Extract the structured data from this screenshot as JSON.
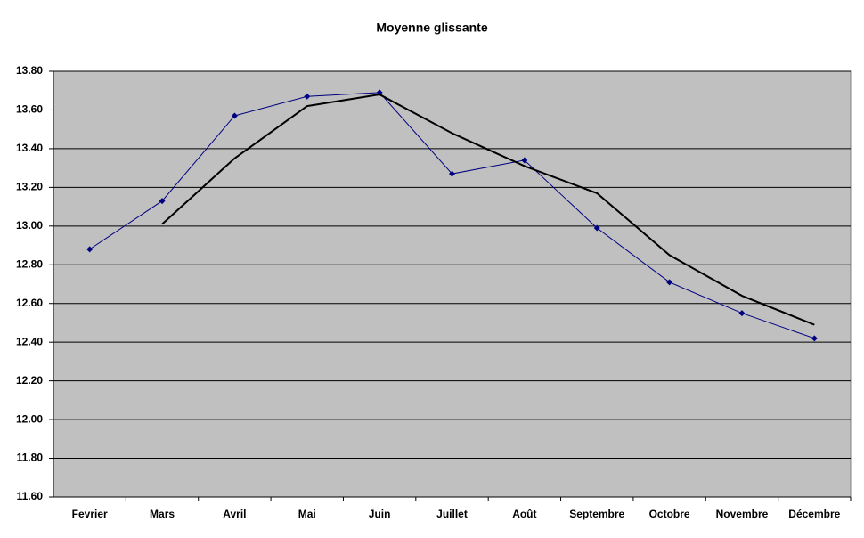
{
  "chart_data": {
    "type": "line",
    "title": "Moyenne glissante",
    "categories": [
      "Fevrier",
      "Mars",
      "Avril",
      "Mai",
      "Juin",
      "Juillet",
      "Août",
      "Septembre",
      "Octobre",
      "Novembre",
      "Décembre"
    ],
    "series": [
      {
        "color": "#000080",
        "marker": "diamond",
        "width": 1,
        "values": [
          12.88,
          13.13,
          13.57,
          13.67,
          13.69,
          13.27,
          13.34,
          12.99,
          12.71,
          12.55,
          12.42
        ]
      },
      {
        "color": "#000000",
        "marker": "none",
        "width": 2,
        "values": [
          null,
          13.01,
          13.35,
          13.62,
          13.68,
          13.48,
          13.31,
          13.17,
          12.85,
          12.64,
          12.49
        ]
      }
    ],
    "ylim": [
      11.6,
      13.8
    ],
    "yticks": [
      {
        "value": 11.6,
        "label": "11.60"
      },
      {
        "value": 11.8,
        "label": "11.80"
      },
      {
        "value": 12.0,
        "label": "12.00"
      },
      {
        "value": 12.2,
        "label": "12.20"
      },
      {
        "value": 12.4,
        "label": "12.40"
      },
      {
        "value": 12.6,
        "label": "12.60"
      },
      {
        "value": 12.8,
        "label": "12.80"
      },
      {
        "value": 13.0,
        "label": "13.00"
      },
      {
        "value": 13.2,
        "label": "13.20"
      },
      {
        "value": 13.4,
        "label": "13.40"
      },
      {
        "value": 13.6,
        "label": "13.60"
      },
      {
        "value": 13.8,
        "label": "13.80"
      }
    ],
    "grid": true,
    "plot_background": "#c0c0c0"
  }
}
